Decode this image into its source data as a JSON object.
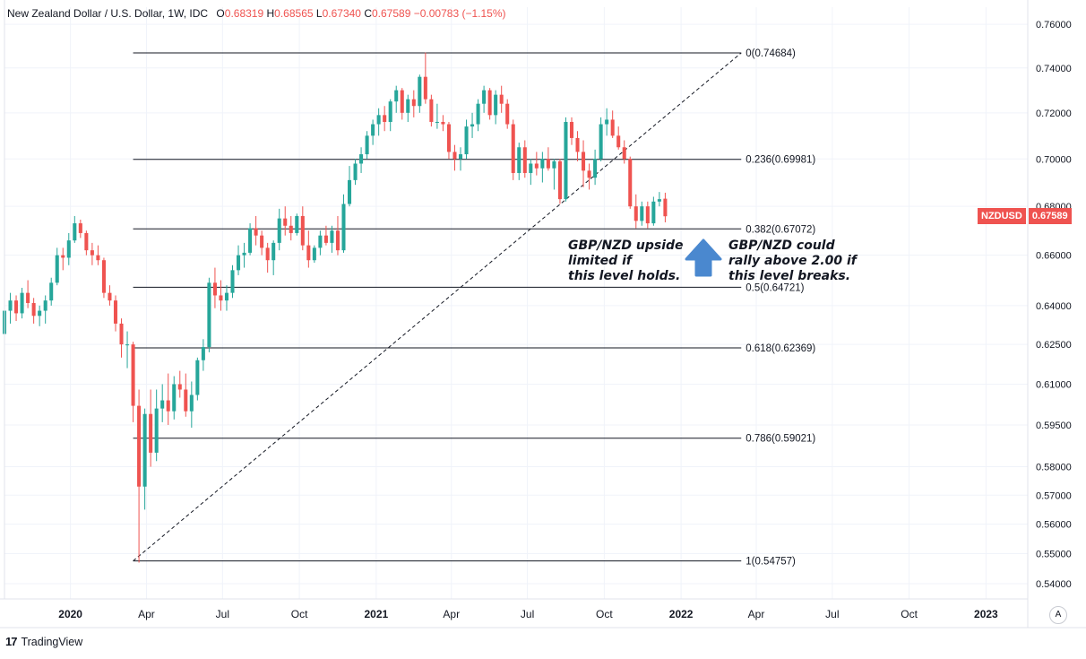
{
  "header": {
    "symbol_title": "New Zealand Dollar / U.S. Dollar, 1W, IDC",
    "o_label": "O",
    "o_value": "0.68319",
    "h_label": "H",
    "h_value": "0.68565",
    "l_label": "L",
    "l_value": "0.67340",
    "c_label": "C",
    "c_value": "0.67589",
    "change": "−0.00783 (−1.15%)"
  },
  "price_tag": {
    "symbol": "NZDUSD",
    "price": "0.67589",
    "value": 0.67589
  },
  "branding": {
    "logo_mark": "17",
    "name": "TradingView"
  },
  "auto_scale_label": "A",
  "annotations": {
    "left": [
      "GBP/NZD upside",
      "limited if",
      "this level holds."
    ],
    "right": [
      "GBP/NZD could",
      "rally above 2.00 if",
      "this level breaks."
    ],
    "arrow_color": "#4a88cf"
  },
  "colors": {
    "up": "#26a69a",
    "down": "#ef5350",
    "grid": "#f0f3fa",
    "axis_text": "#131722"
  },
  "chart_data": {
    "type": "candlestick",
    "y_axis": {
      "scale": "log",
      "range": [
        0.535,
        0.768
      ],
      "ticks": [
        "0.76000",
        "0.74000",
        "0.72000",
        "0.70000",
        "0.68000",
        "0.66000",
        "0.64000",
        "0.62500",
        "0.61000",
        "0.59500",
        "0.58000",
        "0.57000",
        "0.56000",
        "0.55000",
        "0.54000"
      ]
    },
    "x_axis": {
      "range": [
        "2019-10-14",
        "2023-02-20"
      ],
      "ticks": [
        {
          "label": "2020",
          "date": "2020-01-01",
          "bold": true
        },
        {
          "label": "Apr",
          "date": "2020-04-01",
          "bold": false
        },
        {
          "label": "Jul",
          "date": "2020-07-01",
          "bold": false
        },
        {
          "label": "Oct",
          "date": "2020-10-01",
          "bold": false
        },
        {
          "label": "2021",
          "date": "2021-01-01",
          "bold": true
        },
        {
          "label": "Apr",
          "date": "2021-04-01",
          "bold": false
        },
        {
          "label": "Jul",
          "date": "2021-07-01",
          "bold": false
        },
        {
          "label": "Oct",
          "date": "2021-10-01",
          "bold": false
        },
        {
          "label": "2022",
          "date": "2022-01-01",
          "bold": true
        },
        {
          "label": "Apr",
          "date": "2022-04-01",
          "bold": false
        },
        {
          "label": "Jul",
          "date": "2022-07-01",
          "bold": false
        },
        {
          "label": "Oct",
          "date": "2022-10-01",
          "bold": false
        },
        {
          "label": "2023",
          "date": "2023-01-01",
          "bold": true
        }
      ]
    },
    "grid": true,
    "fibonacci": {
      "trend_line": {
        "from": {
          "date": "2020-03-16",
          "price": 0.54757
        },
        "to": {
          "date": "2022-03-14",
          "price": 0.74684
        }
      },
      "line_start": "2020-03-16",
      "line_end": "2022-03-14",
      "levels": [
        {
          "label": "0(0.74684)",
          "price": 0.74684
        },
        {
          "label": "0.236(0.69981)",
          "price": 0.69981
        },
        {
          "label": "0.382(0.67072)",
          "price": 0.67072
        },
        {
          "label": "0.5(0.64721)",
          "price": 0.64721
        },
        {
          "label": "0.618(0.62369)",
          "price": 0.62369
        },
        {
          "label": "0.786(0.59021)",
          "price": 0.59021
        },
        {
          "label": "1(0.54757)",
          "price": 0.54757
        }
      ]
    },
    "start_date": "2019-10-14",
    "candles": [
      [
        0.629,
        0.642,
        0.626,
        0.638
      ],
      [
        0.638,
        0.645,
        0.633,
        0.642
      ],
      [
        0.642,
        0.644,
        0.634,
        0.637
      ],
      [
        0.637,
        0.647,
        0.635,
        0.645
      ],
      [
        0.645,
        0.65,
        0.639,
        0.641
      ],
      [
        0.641,
        0.643,
        0.633,
        0.636
      ],
      [
        0.636,
        0.64,
        0.632,
        0.638
      ],
      [
        0.638,
        0.644,
        0.633,
        0.642
      ],
      [
        0.642,
        0.651,
        0.64,
        0.649
      ],
      [
        0.649,
        0.663,
        0.648,
        0.66
      ],
      [
        0.66,
        0.663,
        0.654,
        0.659
      ],
      [
        0.659,
        0.669,
        0.656,
        0.666
      ],
      [
        0.666,
        0.676,
        0.665,
        0.673
      ],
      [
        0.673,
        0.6745,
        0.667,
        0.669
      ],
      [
        0.669,
        0.67,
        0.66,
        0.662
      ],
      [
        0.662,
        0.665,
        0.656,
        0.66
      ],
      [
        0.66,
        0.664,
        0.656,
        0.658
      ],
      [
        0.658,
        0.659,
        0.643,
        0.645
      ],
      [
        0.645,
        0.648,
        0.64,
        0.642
      ],
      [
        0.642,
        0.644,
        0.63,
        0.633
      ],
      [
        0.633,
        0.635,
        0.62,
        0.625
      ],
      [
        0.625,
        0.63,
        0.616,
        0.625
      ],
      [
        0.625,
        0.626,
        0.596,
        0.602
      ],
      [
        0.602,
        0.608,
        0.547,
        0.573
      ],
      [
        0.573,
        0.601,
        0.565,
        0.599
      ],
      [
        0.599,
        0.608,
        0.58,
        0.585
      ],
      [
        0.585,
        0.608,
        0.582,
        0.601
      ],
      [
        0.601,
        0.61,
        0.596,
        0.604
      ],
      [
        0.604,
        0.614,
        0.595,
        0.6
      ],
      [
        0.6,
        0.613,
        0.597,
        0.61
      ],
      [
        0.61,
        0.615,
        0.605,
        0.608
      ],
      [
        0.608,
        0.614,
        0.598,
        0.6
      ],
      [
        0.6,
        0.611,
        0.594,
        0.606
      ],
      [
        0.606,
        0.62,
        0.604,
        0.619
      ],
      [
        0.619,
        0.627,
        0.615,
        0.624
      ],
      [
        0.624,
        0.651,
        0.622,
        0.649
      ],
      [
        0.649,
        0.655,
        0.639,
        0.644
      ],
      [
        0.644,
        0.65,
        0.638,
        0.642
      ],
      [
        0.642,
        0.648,
        0.638,
        0.645
      ],
      [
        0.645,
        0.656,
        0.643,
        0.654
      ],
      [
        0.654,
        0.664,
        0.652,
        0.66
      ],
      [
        0.66,
        0.665,
        0.655,
        0.661
      ],
      [
        0.661,
        0.673,
        0.66,
        0.671
      ],
      [
        0.671,
        0.676,
        0.664,
        0.668
      ],
      [
        0.668,
        0.67,
        0.66,
        0.663
      ],
      [
        0.663,
        0.665,
        0.653,
        0.658
      ],
      [
        0.658,
        0.666,
        0.652,
        0.665
      ],
      [
        0.665,
        0.679,
        0.662,
        0.675
      ],
      [
        0.675,
        0.68,
        0.668,
        0.672
      ],
      [
        0.672,
        0.676,
        0.666,
        0.669
      ],
      [
        0.669,
        0.677,
        0.668,
        0.676
      ],
      [
        0.676,
        0.68,
        0.662,
        0.664
      ],
      [
        0.664,
        0.67,
        0.655,
        0.658
      ],
      [
        0.658,
        0.664,
        0.657,
        0.663
      ],
      [
        0.663,
        0.67,
        0.66,
        0.668
      ],
      [
        0.668,
        0.672,
        0.664,
        0.665
      ],
      [
        0.665,
        0.672,
        0.661,
        0.67
      ],
      [
        0.67,
        0.676,
        0.66,
        0.662
      ],
      [
        0.662,
        0.685,
        0.661,
        0.681
      ],
      [
        0.681,
        0.697,
        0.68,
        0.691
      ],
      [
        0.691,
        0.7,
        0.689,
        0.698
      ],
      [
        0.698,
        0.705,
        0.694,
        0.702
      ],
      [
        0.702,
        0.712,
        0.7,
        0.71
      ],
      [
        0.71,
        0.717,
        0.706,
        0.715
      ],
      [
        0.715,
        0.722,
        0.71,
        0.719
      ],
      [
        0.719,
        0.723,
        0.712,
        0.716
      ],
      [
        0.716,
        0.726,
        0.712,
        0.725
      ],
      [
        0.725,
        0.732,
        0.72,
        0.73
      ],
      [
        0.73,
        0.731,
        0.717,
        0.72
      ],
      [
        0.72,
        0.728,
        0.716,
        0.726
      ],
      [
        0.726,
        0.73,
        0.718,
        0.723
      ],
      [
        0.723,
        0.737,
        0.72,
        0.736
      ],
      [
        0.736,
        0.747,
        0.724,
        0.726
      ],
      [
        0.726,
        0.728,
        0.714,
        0.716
      ],
      [
        0.716,
        0.724,
        0.713,
        0.716
      ],
      [
        0.716,
        0.719,
        0.712,
        0.715
      ],
      [
        0.715,
        0.716,
        0.7,
        0.703
      ],
      [
        0.703,
        0.706,
        0.695,
        0.7
      ],
      [
        0.7,
        0.705,
        0.695,
        0.702
      ],
      [
        0.702,
        0.717,
        0.7,
        0.714
      ],
      [
        0.714,
        0.72,
        0.709,
        0.715
      ],
      [
        0.715,
        0.726,
        0.712,
        0.724
      ],
      [
        0.724,
        0.732,
        0.72,
        0.73
      ],
      [
        0.73,
        0.731,
        0.717,
        0.719
      ],
      [
        0.719,
        0.73,
        0.715,
        0.728
      ],
      [
        0.728,
        0.732,
        0.72,
        0.724
      ],
      [
        0.724,
        0.726,
        0.713,
        0.715
      ],
      [
        0.715,
        0.717,
        0.691,
        0.694
      ],
      [
        0.694,
        0.707,
        0.691,
        0.705
      ],
      [
        0.705,
        0.708,
        0.692,
        0.694
      ],
      [
        0.694,
        0.7,
        0.689,
        0.698
      ],
      [
        0.698,
        0.703,
        0.693,
        0.696
      ],
      [
        0.696,
        0.703,
        0.69,
        0.7
      ],
      [
        0.7,
        0.705,
        0.695,
        0.696
      ],
      [
        0.696,
        0.7,
        0.687,
        0.699
      ],
      [
        0.699,
        0.7,
        0.681,
        0.683
      ],
      [
        0.683,
        0.718,
        0.682,
        0.716
      ],
      [
        0.716,
        0.718,
        0.706,
        0.709
      ],
      [
        0.709,
        0.712,
        0.699,
        0.703
      ],
      [
        0.703,
        0.708,
        0.688,
        0.695
      ],
      [
        0.695,
        0.698,
        0.687,
        0.692
      ],
      [
        0.692,
        0.704,
        0.689,
        0.7
      ],
      [
        0.7,
        0.718,
        0.699,
        0.715
      ],
      [
        0.715,
        0.722,
        0.71,
        0.717
      ],
      [
        0.717,
        0.721,
        0.709,
        0.71
      ],
      [
        0.71,
        0.714,
        0.704,
        0.705
      ],
      [
        0.705,
        0.708,
        0.698,
        0.7
      ],
      [
        0.7,
        0.701,
        0.679,
        0.68
      ],
      [
        0.68,
        0.685,
        0.671,
        0.674
      ],
      [
        0.674,
        0.682,
        0.672,
        0.68
      ],
      [
        0.68,
        0.682,
        0.671,
        0.673
      ],
      [
        0.673,
        0.684,
        0.672,
        0.682
      ],
      [
        0.682,
        0.686,
        0.68,
        0.683
      ],
      [
        0.6832,
        0.6857,
        0.6734,
        0.6759
      ]
    ]
  }
}
